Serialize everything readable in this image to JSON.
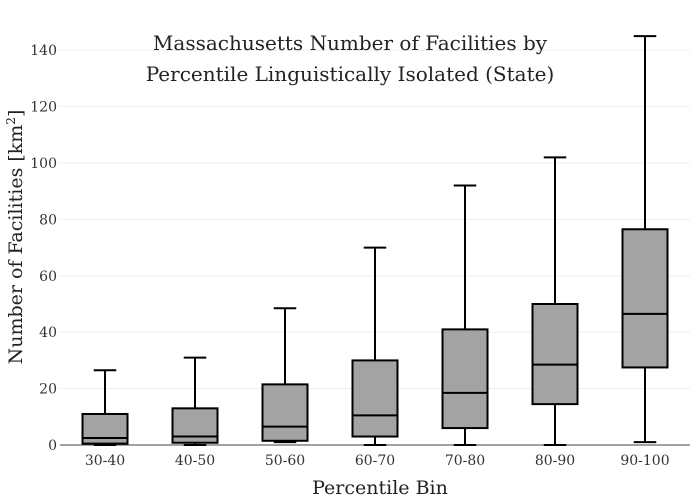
{
  "chart_data": {
    "type": "box",
    "title_line1": "Massachusetts Number of Facilities by",
    "title_line2": "Percentile Linguistically Isolated (State)",
    "xlabel": "Percentile Bin",
    "ylabel": "Number of Facilities  [km",
    "ylabel_sup": "2",
    "ylabel_end": "]",
    "ylim": [
      0,
      150
    ],
    "yticks": [
      0,
      20,
      40,
      60,
      80,
      100,
      120,
      140
    ],
    "grid": true,
    "categories": [
      "30-40",
      "40-50",
      "50-60",
      "60-70",
      "70-80",
      "80-90",
      "90-100"
    ],
    "boxes": [
      {
        "min": 0,
        "q1": 0.5,
        "median": 2.5,
        "q3": 11,
        "max": 26.5
      },
      {
        "min": 0,
        "q1": 0.8,
        "median": 3,
        "q3": 13,
        "max": 31
      },
      {
        "min": 1,
        "q1": 1.5,
        "median": 6.5,
        "q3": 21.5,
        "max": 48.5
      },
      {
        "min": 0,
        "q1": 3,
        "median": 10.5,
        "q3": 30,
        "max": 70
      },
      {
        "min": 0,
        "q1": 6,
        "median": 18.5,
        "q3": 41,
        "max": 92
      },
      {
        "min": 0,
        "q1": 14.5,
        "median": 28.5,
        "q3": 50,
        "max": 102
      },
      {
        "min": 1,
        "q1": 27.5,
        "median": 46.5,
        "q3": 76.5,
        "max": 145
      }
    ],
    "box_color": "#a3a3a3",
    "line_color": "#000000",
    "grid_color": "#eeeeee"
  }
}
